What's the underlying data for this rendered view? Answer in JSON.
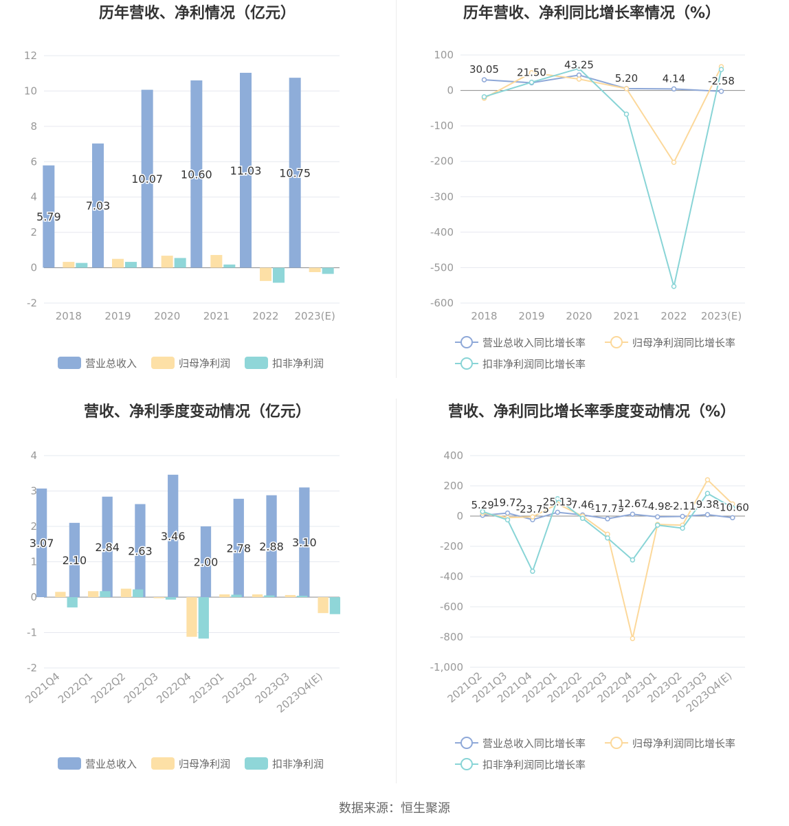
{
  "colors": {
    "revenue": "#8eadd9",
    "net_profit": "#fde0a6",
    "deducted_profit": "#8fd6d8",
    "revenue_line": "#8ea8d8",
    "net_line": "#fcd89a",
    "deducted_line": "#88d4d6",
    "axis_text": "#999999",
    "grid": "#e6e8ef",
    "title": "#333333"
  },
  "source_text": "数据来源：恒生聚源",
  "chart_data": [
    {
      "id": "annual_amount",
      "type": "bar",
      "title": "历年营收、净利情况（亿元）",
      "categories": [
        "2018",
        "2019",
        "2020",
        "2021",
        "2022",
        "2023(E)"
      ],
      "ylim": [
        -2,
        12
      ],
      "yticks": [
        -2,
        0,
        2,
        4,
        6,
        8,
        10,
        12
      ],
      "series": [
        {
          "name": "营业总收入",
          "values": [
            5.79,
            7.03,
            10.07,
            10.6,
            11.03,
            10.75
          ],
          "labels": [
            "5.79",
            "7.03",
            "10.07",
            "10.60",
            "11.03",
            "10.75"
          ]
        },
        {
          "name": "归母净利润",
          "values": [
            0.33,
            0.5,
            0.68,
            0.72,
            -0.75,
            -0.25
          ]
        },
        {
          "name": "扣非净利润",
          "values": [
            0.27,
            0.33,
            0.55,
            0.18,
            -0.85,
            -0.35
          ]
        }
      ],
      "legend_position": "bottom"
    },
    {
      "id": "annual_growth",
      "type": "line",
      "title": "历年营收、净利同比增长率情况（%）",
      "categories": [
        "2018",
        "2019",
        "2020",
        "2021",
        "2022",
        "2023(E)"
      ],
      "ylim": [
        -600,
        100
      ],
      "yticks": [
        -600,
        -500,
        -400,
        -300,
        -200,
        -100,
        0,
        100
      ],
      "series": [
        {
          "name": "营业总收入同比增长率",
          "values": [
            30.05,
            21.5,
            43.25,
            5.2,
            4.14,
            -2.58
          ],
          "labels": [
            "30.05",
            "21.50",
            "43.25",
            "5.20",
            "4.14",
            "-2.58"
          ]
        },
        {
          "name": "归母净利润同比增长率",
          "values": [
            -22,
            50,
            32,
            5,
            -203,
            67
          ]
        },
        {
          "name": "扣非净利润同比增长率",
          "values": [
            -18,
            23,
            62,
            -67,
            -553,
            59
          ]
        }
      ],
      "legend_position": "bottom"
    },
    {
      "id": "quarterly_amount",
      "type": "bar",
      "title": "营收、净利季度变动情况（亿元）",
      "categories": [
        "2021Q4",
        "2022Q1",
        "2022Q2",
        "2022Q3",
        "2022Q4",
        "2023Q1",
        "2023Q2",
        "2023Q3",
        "2023Q4(E)"
      ],
      "ylim": [
        -2,
        4
      ],
      "yticks": [
        -2,
        -1,
        0,
        1,
        2,
        3,
        4
      ],
      "series": [
        {
          "name": "营业总收入",
          "values": [
            3.07,
            2.1,
            2.84,
            2.63,
            3.46,
            2.0,
            2.78,
            2.88,
            3.1
          ],
          "labels": [
            "3.07",
            "2.10",
            "2.84",
            "2.63",
            "3.46",
            "2.00",
            "2.78",
            "2.88",
            "3.10"
          ]
        },
        {
          "name": "归母净利润",
          "values": [
            0.15,
            0.17,
            0.24,
            -0.03,
            -1.12,
            0.08,
            0.08,
            0.06,
            -0.45
          ]
        },
        {
          "name": "扣非净利润",
          "values": [
            -0.29,
            0.17,
            0.22,
            -0.07,
            -1.17,
            0.07,
            0.05,
            0.04,
            -0.48
          ]
        }
      ],
      "legend_position": "bottom"
    },
    {
      "id": "quarterly_growth",
      "type": "line",
      "title": "营收、净利同比增长率季度变动情况（%）",
      "categories": [
        "2021Q2",
        "2021Q3",
        "2021Q4",
        "2022Q1",
        "2022Q2",
        "2022Q3",
        "2022Q4",
        "2023Q1",
        "2023Q2",
        "2023Q3",
        "2023Q4(E)"
      ],
      "ylim": [
        -1000,
        400
      ],
      "yticks": [
        -1000,
        -800,
        -600,
        -400,
        -200,
        0,
        200,
        400
      ],
      "ytick_labels": [
        "-1,000",
        "-800",
        "-600",
        "-400",
        "-200",
        "0",
        "200",
        "400"
      ],
      "series": [
        {
          "name": "营业总收入同比增长率",
          "values": [
            5.29,
            19.72,
            -23.75,
            25.13,
            7.46,
            -17.79,
            12.67,
            -4.98,
            -2.11,
            9.38,
            -10.6
          ],
          "labels": [
            "5.29",
            "19.72",
            "-23.75",
            "25.13",
            "7.46",
            "-17.79",
            "12.67",
            "-4.98",
            "-2.11",
            "9.38",
            "-10.60"
          ]
        },
        {
          "name": "归母净利润同比增长率",
          "values": [
            20,
            -10,
            -5,
            80,
            0,
            -120,
            -810,
            -55,
            -60,
            240,
            80
          ]
        },
        {
          "name": "扣非净利润同比增长率",
          "values": [
            30,
            -25,
            -365,
            115,
            -15,
            -145,
            -290,
            -60,
            -80,
            150,
            55
          ]
        }
      ],
      "legend_position": "bottom"
    }
  ]
}
